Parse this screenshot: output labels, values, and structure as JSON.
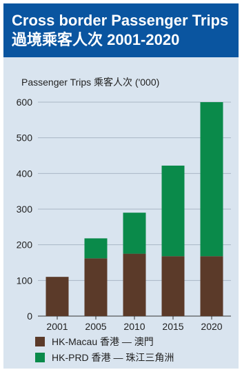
{
  "title": "Cross border Passenger Trips",
  "subtitle": "過境乘客人次 2001-2020",
  "colors": {
    "header_bg": "#0a55a0",
    "panel_bg": "#d9e4ef",
    "macau": "#5b3a29",
    "prd": "#0a8a4a",
    "grid": "#a9b6c4"
  },
  "chart_data": {
    "type": "bar",
    "stacked": true,
    "ylabel": "Passenger Trips 乘客人次 ('000)",
    "categories": [
      "2001",
      "2005",
      "2010",
      "2015",
      "2020"
    ],
    "series": [
      {
        "name": "HK-Macau 香港 — 澳門",
        "values": [
          110,
          162,
          175,
          168,
          168
        ]
      },
      {
        "name": "HK-PRD 香港 — 珠江三角洲",
        "values": [
          0,
          56,
          115,
          254,
          432
        ]
      }
    ],
    "ylim": [
      0,
      600
    ],
    "yticks": [
      "0",
      "100",
      "200",
      "300",
      "400",
      "500",
      "600"
    ],
    "grid": true,
    "legend_position": "bottom-left"
  }
}
